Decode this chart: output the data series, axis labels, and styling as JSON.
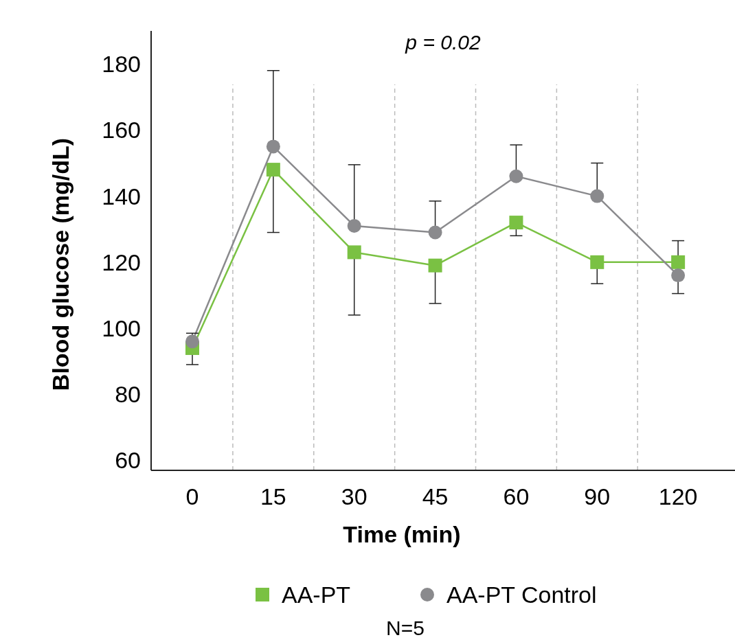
{
  "chart_data": {
    "type": "line",
    "xlabel": "Time (min)",
    "ylabel": "Blood glucose (mg/dL)",
    "categories": [
      "0",
      "15",
      "30",
      "45",
      "60",
      "90",
      "120"
    ],
    "ylim": [
      57,
      190
    ],
    "yticks": [
      60,
      80,
      100,
      120,
      140,
      160,
      180
    ],
    "grid": "x",
    "legend": "bottom",
    "line_style": "solid",
    "series": [
      {
        "name": "AA-PT",
        "color": "#7ac143",
        "marker": "square",
        "values": [
          94,
          148,
          123,
          119,
          132,
          120,
          120
        ],
        "errors": [
          [
            89,
            94
          ],
          [
            129,
            148
          ],
          [
            104,
            123
          ],
          [
            107.5,
            119
          ],
          [
            128,
            132
          ],
          [
            113.5,
            120
          ],
          [
            120,
            126.5
          ]
        ]
      },
      {
        "name": "AA-PT Control",
        "color": "#8a8a8d",
        "marker": "circle",
        "values": [
          96,
          155,
          131,
          129,
          146,
          140,
          116
        ],
        "errors": [
          [
            96,
            98.5
          ],
          [
            155,
            178
          ],
          [
            131,
            149.5
          ],
          [
            129,
            138.5
          ],
          [
            146,
            155.5
          ],
          [
            140,
            150
          ],
          [
            110.5,
            116
          ]
        ]
      }
    ],
    "annotations": [
      "p = 0.02",
      "N=5"
    ]
  }
}
